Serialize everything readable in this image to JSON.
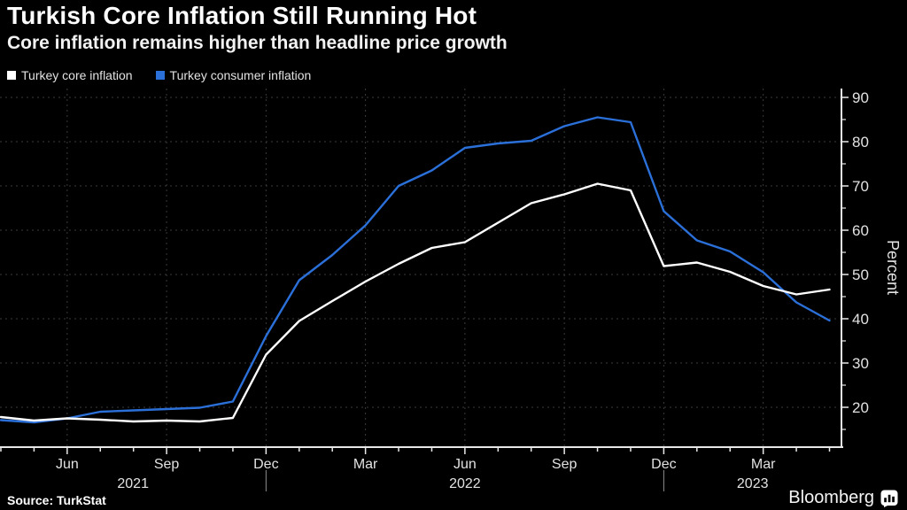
{
  "chart_data": {
    "type": "line",
    "title": "Turkish Core Inflation Still Running Hot",
    "subtitle": "Core inflation remains higher than headline price growth",
    "ylabel": "Percent",
    "ylim": [
      11,
      92
    ],
    "yticks": [
      20,
      30,
      40,
      50,
      60,
      70,
      80,
      90
    ],
    "grid": "dashed",
    "legend_position": "top-left",
    "x": [
      "Apr 2021",
      "May 2021",
      "Jun 2021",
      "Jul 2021",
      "Aug 2021",
      "Sep 2021",
      "Oct 2021",
      "Nov 2021",
      "Dec 2021",
      "Jan 2022",
      "Feb 2022",
      "Mar 2022",
      "Apr 2022",
      "May 2022",
      "Jun 2022",
      "Jul 2022",
      "Aug 2022",
      "Sep 2022",
      "Oct 2022",
      "Nov 2022",
      "Dec 2022",
      "Jan 2023",
      "Feb 2023",
      "Mar 2023",
      "Apr 2023",
      "May 2023"
    ],
    "series": [
      {
        "name": "Turkey core inflation",
        "color": "#ffffff",
        "values": [
          17.8,
          17.0,
          17.5,
          17.2,
          16.8,
          17.0,
          16.8,
          17.6,
          31.9,
          39.5,
          44.0,
          48.4,
          52.4,
          56.0,
          57.3,
          61.7,
          66.1,
          68.1,
          70.5,
          69.0,
          51.9,
          52.7,
          50.6,
          47.4,
          45.5,
          46.6
        ]
      },
      {
        "name": "Turkey consumer inflation",
        "color": "#2b70d9",
        "values": [
          17.1,
          16.6,
          17.5,
          19.0,
          19.3,
          19.6,
          19.9,
          21.3,
          36.1,
          48.7,
          54.4,
          61.1,
          70.0,
          73.5,
          78.6,
          79.6,
          80.2,
          83.5,
          85.5,
          84.4,
          64.3,
          57.7,
          55.2,
          50.5,
          43.7,
          39.6
        ]
      }
    ],
    "xtick_labels": [
      {
        "label": "Jun",
        "i": 2
      },
      {
        "label": "Sep",
        "i": 5
      },
      {
        "label": "Dec",
        "i": 8
      },
      {
        "label": "Mar",
        "i": 11
      },
      {
        "label": "Jun",
        "i": 14
      },
      {
        "label": "Sep",
        "i": 17
      },
      {
        "label": "Dec",
        "i": 20
      },
      {
        "label": "Mar",
        "i": 23
      }
    ],
    "year_labels": [
      "2021",
      "2022",
      "2023"
    ],
    "year_divider_indices": [
      8,
      20
    ]
  },
  "legend": [
    {
      "label": "Turkey core inflation"
    },
    {
      "label": "Turkey consumer inflation"
    }
  ],
  "footer": {
    "source": "Source: TurkStat",
    "brand": "Bloomberg"
  },
  "colors": {
    "background": "#000000",
    "grid": "#3a3a3a",
    "axis": "#e8e8e8",
    "tick_text": "#e2e2e2",
    "core_line": "#ffffff",
    "consumer_line": "#2b70d9"
  }
}
